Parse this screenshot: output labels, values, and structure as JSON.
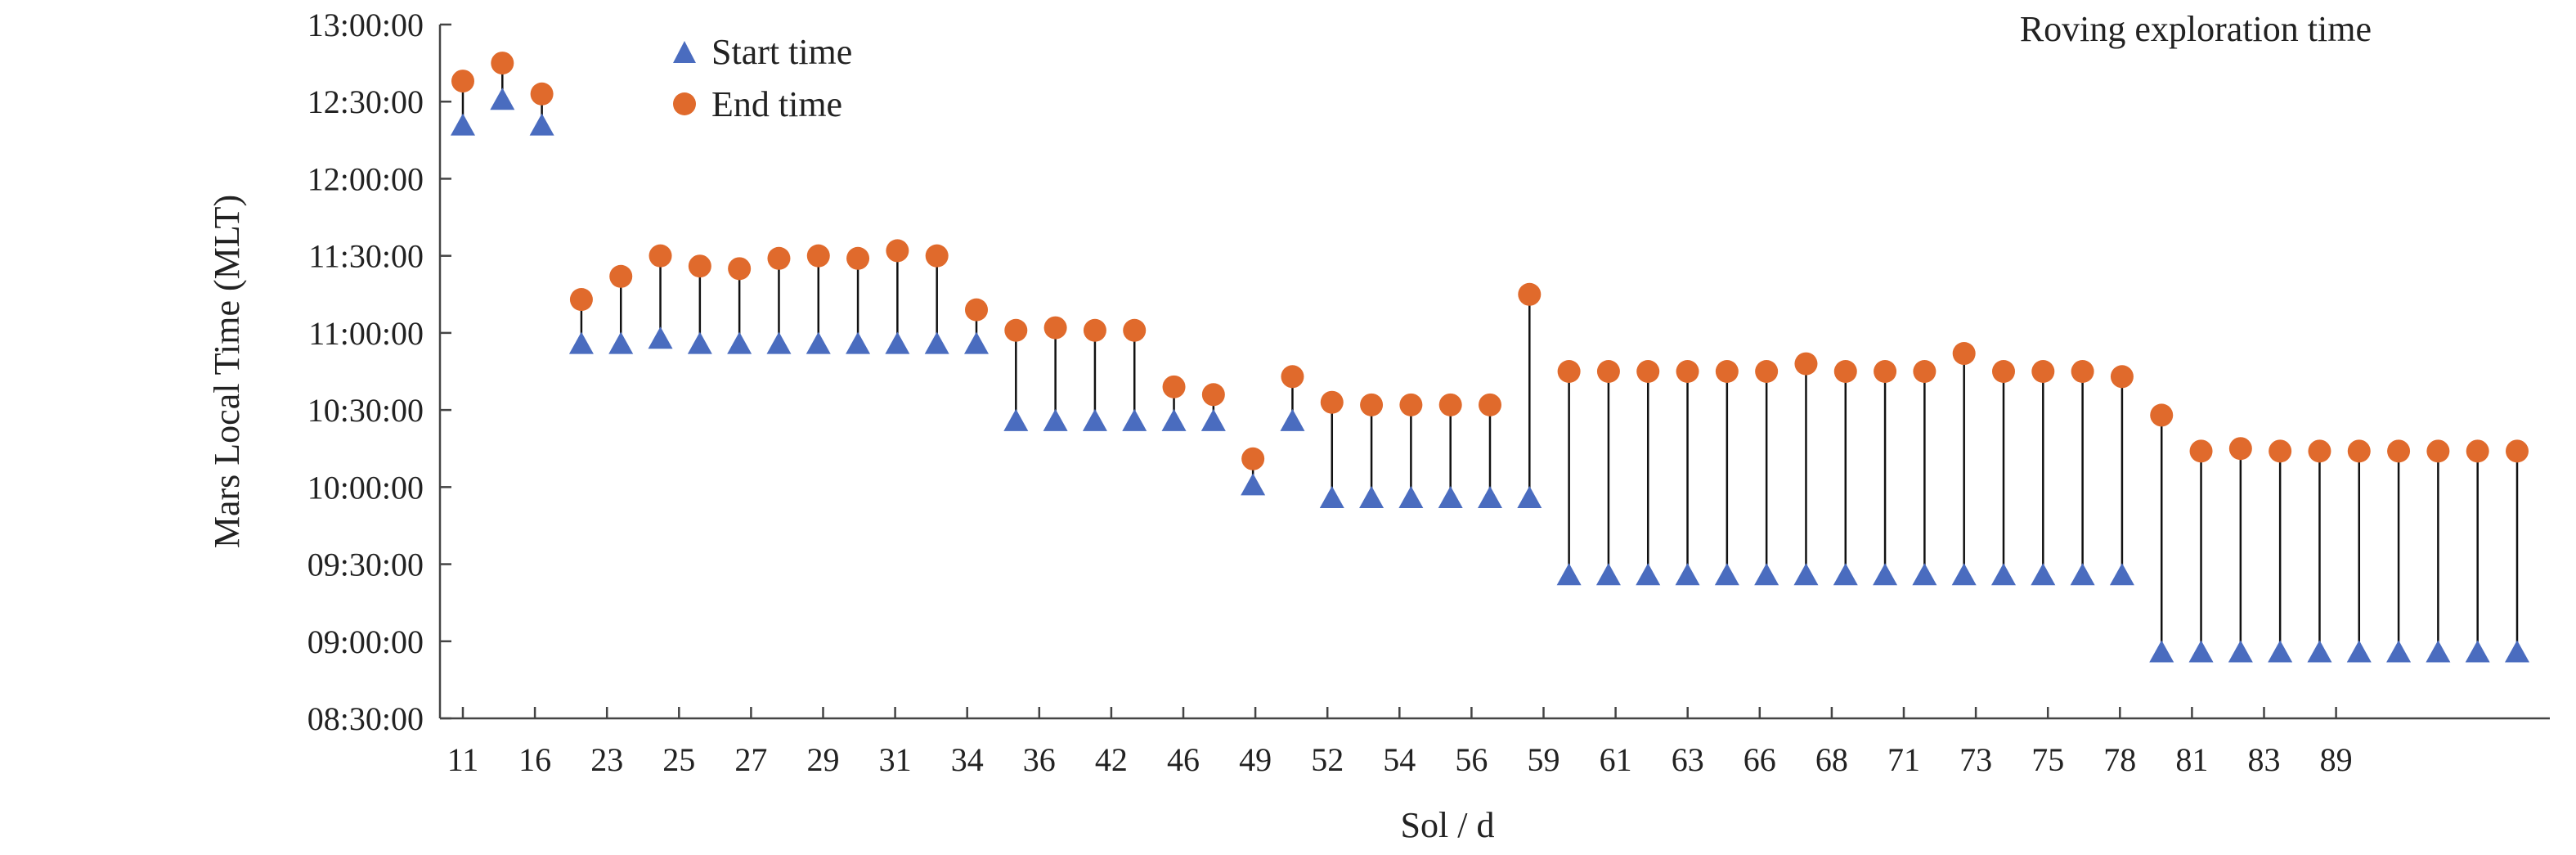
{
  "chart_data": {
    "type": "scatter",
    "title": "Roving exploration time",
    "xlabel": "Sol / d",
    "ylabel": "Mars Local Time (MLT)",
    "x_tick_labels": [
      "11",
      "16",
      "23",
      "25",
      "27",
      "29",
      "31",
      "34",
      "36",
      "42",
      "46",
      "49",
      "52",
      "54",
      "56",
      "59",
      "61",
      "63",
      "66",
      "68",
      "71",
      "73",
      "75",
      "78",
      "81",
      "83",
      "89"
    ],
    "y_tick_labels": [
      "08:30:00",
      "09:00:00",
      "09:30:00",
      "10:00:00",
      "10:30:00",
      "11:00:00",
      "11:30:00",
      "12:00:00",
      "12:30:00",
      "13:00:00"
    ],
    "ylim": [
      "08:30:00",
      "13:00:00"
    ],
    "grid": false,
    "legend_position": "top-left",
    "colors": {
      "start": "#4a6cbf",
      "end": "#e06a2c",
      "stem": "#111111",
      "axis": "#444444"
    },
    "series": [
      {
        "name": "Start time",
        "marker": "triangle",
        "values": [
          "12:20:00",
          "12:30:00",
          "12:20:00",
          "10:55:00",
          "10:55:00",
          "10:57:00",
          "10:55:00",
          "10:55:00",
          "10:55:00",
          "10:55:00",
          "10:55:00",
          "10:55:00",
          "10:55:00",
          "10:55:00",
          "10:25:00",
          "10:25:00",
          "10:25:00",
          "10:25:00",
          "10:25:00",
          "10:25:00",
          "10:00:00",
          "10:25:00",
          "09:55:00",
          "09:55:00",
          "09:55:00",
          "09:55:00",
          "09:55:00",
          "09:55:00",
          "09:25:00",
          "09:25:00",
          "09:25:00",
          "09:25:00",
          "09:25:00",
          "09:25:00",
          "09:25:00",
          "09:25:00",
          "09:25:00",
          "09:25:00",
          "09:25:00",
          "09:25:00",
          "09:25:00",
          "09:25:00",
          "09:25:00",
          "08:55:00",
          "08:55:00",
          "08:55:00",
          "08:55:00",
          "08:55:00",
          "08:55:00",
          "08:55:00",
          "08:55:00",
          "08:55:00",
          "08:55:00"
        ]
      },
      {
        "name": "End time",
        "marker": "circle",
        "values": [
          "12:38:00",
          "12:45:00",
          "12:33:00",
          "11:13:00",
          "11:22:00",
          "11:30:00",
          "11:26:00",
          "11:25:00",
          "11:29:00",
          "11:30:00",
          "11:29:00",
          "11:32:00",
          "11:30:00",
          "11:09:00",
          "11:01:00",
          "11:02:00",
          "11:01:00",
          "11:01:00",
          "10:39:00",
          "10:36:00",
          "10:11:00",
          "10:43:00",
          "10:33:00",
          "10:32:00",
          "10:32:00",
          "10:32:00",
          "10:32:00",
          "11:15:00",
          "10:45:00",
          "10:45:00",
          "10:45:00",
          "10:45:00",
          "10:45:00",
          "10:45:00",
          "10:48:00",
          "10:45:00",
          "10:45:00",
          "10:45:00",
          "10:52:00",
          "10:45:00",
          "10:45:00",
          "10:45:00",
          "10:43:00",
          "10:28:00",
          "10:14:00",
          "10:15:00",
          "10:14:00",
          "10:14:00",
          "10:14:00",
          "10:14:00",
          "10:14:00",
          "10:14:00",
          "10:14:00"
        ]
      }
    ]
  }
}
